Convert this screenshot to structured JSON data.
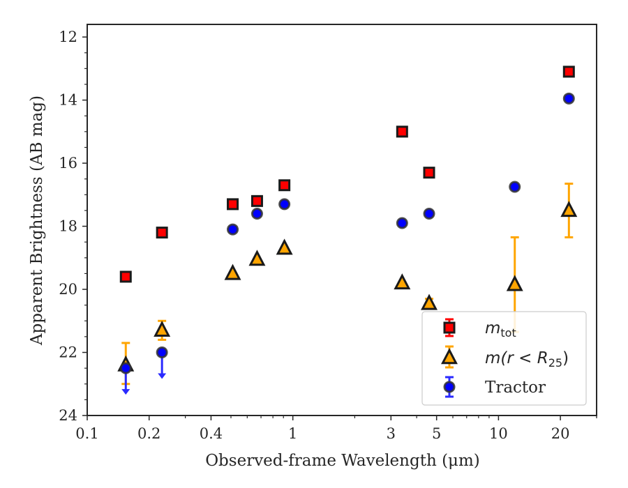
{
  "chart_data": {
    "type": "scatter",
    "title": "",
    "xlabel": "Observed-frame Wavelength (μm)",
    "ylabel": "Apparent Brightness (AB mag)",
    "xscale": "log",
    "xlim": [
      0.1,
      30
    ],
    "ylim": [
      24,
      11.6
    ],
    "y_inverted": true,
    "x_ticks": [
      0.1,
      0.2,
      0.4,
      1,
      3,
      5,
      10,
      20
    ],
    "x_tick_labels": [
      "0.1",
      "0.2",
      "0.4",
      "1",
      "3",
      "5",
      "10",
      "20"
    ],
    "y_ticks": [
      12,
      14,
      16,
      18,
      20,
      22,
      24
    ],
    "y_tick_labels": [
      "12",
      "14",
      "16",
      "18",
      "20",
      "22",
      "24"
    ],
    "grid": false,
    "legend_position": "bottom-right",
    "series": [
      {
        "name": "m_tot",
        "label_main": "m",
        "label_sub": "tot",
        "marker": "square",
        "color": "#ff0000",
        "edge_color": "#1a1a1a",
        "points": [
          {
            "x": 0.154,
            "y": 19.6
          },
          {
            "x": 0.231,
            "y": 18.2
          },
          {
            "x": 0.51,
            "y": 17.3
          },
          {
            "x": 0.67,
            "y": 17.2
          },
          {
            "x": 0.91,
            "y": 16.7
          },
          {
            "x": 3.4,
            "y": 15.0
          },
          {
            "x": 4.6,
            "y": 16.3
          },
          {
            "x": 22.0,
            "y": 13.1
          }
        ]
      },
      {
        "name": "m(r < R_25)",
        "label_main": "m(r < R",
        "label_sub": "25",
        "label_tail": ")",
        "marker": "triangle",
        "color": "#ffa500",
        "edge_color": "#1a1a1a",
        "points": [
          {
            "x": 0.154,
            "y": 22.4,
            "err_low": 0.6,
            "err_high": 0.7
          },
          {
            "x": 0.231,
            "y": 21.3,
            "err_low": 0.3,
            "err_high": 0.3
          },
          {
            "x": 0.51,
            "y": 19.5
          },
          {
            "x": 0.67,
            "y": 19.05
          },
          {
            "x": 0.91,
            "y": 18.7
          },
          {
            "x": 3.4,
            "y": 19.8
          },
          {
            "x": 4.6,
            "y": 20.45,
            "err_low": 0.15,
            "err_high": 0.15
          },
          {
            "x": 12.0,
            "y": 19.85,
            "err_low": 1.5,
            "err_high": 1.5
          },
          {
            "x": 22.0,
            "y": 17.5,
            "err_low": 0.85,
            "err_high": 0.85
          }
        ]
      },
      {
        "name": "Tractor",
        "label_main": "Tractor",
        "marker": "circle",
        "color": "#0000ff",
        "edge_color": "#333333",
        "points": [
          {
            "x": 0.154,
            "y": 22.5,
            "upper_limit": true
          },
          {
            "x": 0.231,
            "y": 22.0,
            "upper_limit": true
          },
          {
            "x": 0.51,
            "y": 18.1
          },
          {
            "x": 0.67,
            "y": 17.6
          },
          {
            "x": 0.91,
            "y": 17.3
          },
          {
            "x": 3.4,
            "y": 17.9
          },
          {
            "x": 4.6,
            "y": 17.6
          },
          {
            "x": 12.0,
            "y": 16.75
          },
          {
            "x": 22.0,
            "y": 13.95
          }
        ]
      }
    ]
  }
}
